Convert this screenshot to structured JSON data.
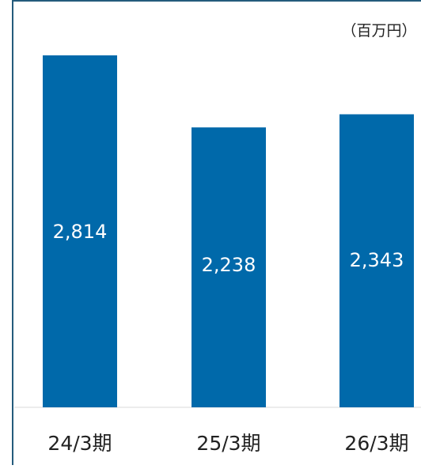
{
  "chart_data": {
    "type": "bar",
    "unit_label": "（百万円）",
    "categories": [
      "24/3期",
      "25/3期",
      "26/3期"
    ],
    "values": [
      2814,
      2238,
      2343
    ],
    "value_labels": [
      "2,814",
      "2,238",
      "2,343"
    ],
    "ylim": [
      0,
      3000
    ],
    "grid": false,
    "legend": "none",
    "colors": {
      "bar": "#0069AA",
      "frame": "#245B7C",
      "bar_label": "#FFFFFF",
      "axis_text": "#222222"
    }
  }
}
